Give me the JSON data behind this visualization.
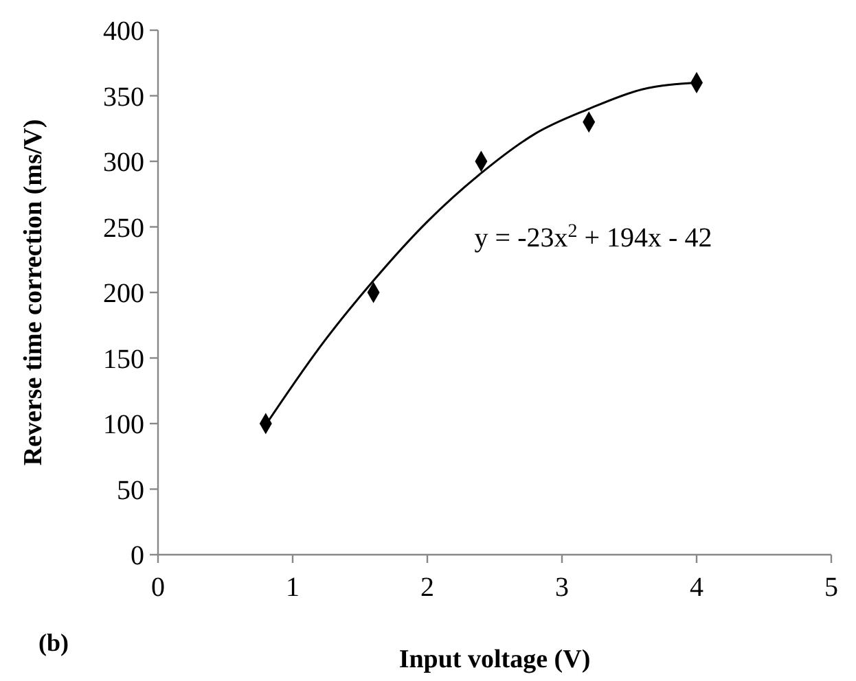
{
  "chart_data": {
    "type": "scatter",
    "xlabel": "Input voltage (V)",
    "ylabel": "Reverse time correction (ms/V)",
    "xlim": [
      0,
      5
    ],
    "xticks": [
      0,
      1,
      2,
      3,
      4,
      5
    ],
    "ylim": [
      0,
      400
    ],
    "yticks": [
      0,
      50,
      100,
      150,
      200,
      250,
      300,
      350,
      400
    ],
    "grid": false,
    "marker": "diamond",
    "annotations": [
      "y = -23x$^{2}$ + 194x - 42",
      "(b)"
    ],
    "series": [
      {
        "color": "#000000",
        "x": [
          0.8,
          1.6,
          2.4,
          3.2,
          4.0
        ],
        "values": [
          100,
          200,
          300,
          330,
          360
        ]
      },
      {
        "type": "line",
        "color": "#000000",
        "marker": "none",
        "line_style": "solid",
        "x": [
          0.8,
          1.2,
          1.6,
          2.0,
          2.4,
          2.8,
          3.2,
          3.6,
          4.0
        ],
        "values": [
          99,
          158,
          209,
          254,
          291,
          321,
          340,
          355,
          360
        ]
      }
    ]
  }
}
